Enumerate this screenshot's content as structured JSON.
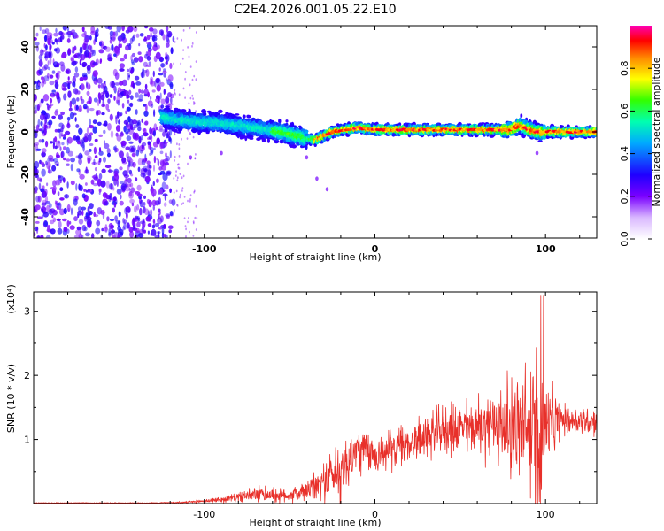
{
  "figure_title": "C2E4.2026.001.05.22.E10",
  "chart_data": [
    {
      "type": "heatmap",
      "title": "C2E4.2026.001.05.22.E10",
      "xlabel": "Height of straight line (km)",
      "ylabel": "Frequency (Hz)",
      "xlim": [
        -200,
        130
      ],
      "ylim": [
        -50,
        50
      ],
      "xticks": [
        -100,
        0,
        100
      ],
      "yticks": [
        -40,
        -20,
        0,
        20,
        40
      ],
      "xtick_labels": [
        "-100",
        "0",
        "100"
      ],
      "ytick_labels": [
        "-40",
        "-20",
        "0",
        "20",
        "40"
      ],
      "noise_region_km": [
        -200,
        -118
      ],
      "ridge": {
        "x": [
          -125,
          -110,
          -90,
          -70,
          -55,
          -40,
          -35,
          -25,
          -10,
          0,
          20,
          40,
          60,
          80,
          85,
          95,
          105,
          130
        ],
        "y": [
          7,
          5,
          4,
          2,
          0,
          -3,
          -4,
          0,
          2,
          1,
          1,
          1,
          1,
          1,
          3,
          0,
          0,
          0
        ]
      },
      "colorbar": {
        "label": "Normalized spectral amplitude",
        "range": [
          0,
          1
        ],
        "ticks": [
          0.0,
          0.2,
          0.4,
          0.6,
          0.8
        ],
        "tick_labels": [
          "0.0",
          "0.2",
          "0.4",
          "0.6",
          "0.8"
        ],
        "colormap": [
          "#ffffff",
          "#7a00ff",
          "#1f00ff",
          "#00aaff",
          "#00ffb0",
          "#33ff00",
          "#ffff00",
          "#ff8800",
          "#ff0000",
          "#ff00b4"
        ]
      }
    },
    {
      "type": "line",
      "xlabel": "Height of straight line (km)",
      "ylabel": "SNR (10 * v/v)",
      "scale_label": "(x10⁴)",
      "xlim": [
        -200,
        130
      ],
      "ylim": [
        0,
        3.3
      ],
      "xticks": [
        -100,
        0,
        100
      ],
      "yticks": [
        1,
        2,
        3
      ],
      "xtick_labels": [
        "-100",
        "0",
        "100"
      ],
      "ytick_labels": [
        "1",
        "2",
        "3"
      ],
      "color": "#e8302a",
      "envelope": {
        "x": [
          -200,
          -130,
          -110,
          -90,
          -75,
          -65,
          -55,
          -45,
          -35,
          -25,
          -20,
          -10,
          0,
          20,
          40,
          60,
          70,
          80,
          90,
          97,
          100,
          110,
          130
        ],
        "base": [
          0.01,
          0.01,
          0.02,
          0.06,
          0.12,
          0.15,
          0.12,
          0.15,
          0.25,
          0.45,
          0.5,
          0.85,
          0.75,
          0.95,
          1.15,
          1.2,
          1.25,
          1.2,
          1.1,
          1.1,
          1.2,
          1.3,
          1.3
        ],
        "amp": [
          0.01,
          0.01,
          0.02,
          0.06,
          0.12,
          0.18,
          0.15,
          0.18,
          0.3,
          0.55,
          0.7,
          0.5,
          0.4,
          0.4,
          0.5,
          0.6,
          0.8,
          1.0,
          1.4,
          1.9,
          1.0,
          0.3,
          0.3
        ]
      }
    }
  ]
}
